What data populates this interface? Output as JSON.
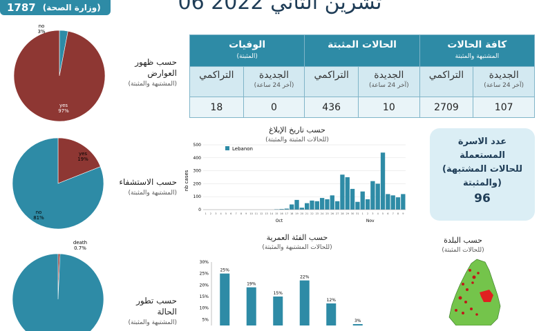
{
  "top_badge": {
    "number": "1787",
    "source": "(وزارة الصحة)"
  },
  "date": "06 تشرين الثاني 2022",
  "table": {
    "groups": [
      {
        "title": "الوفيات",
        "subtitle": "(المثبتة)"
      },
      {
        "title": "الحالات المثبتة",
        "subtitle": ""
      },
      {
        "title": "كافة الحالات",
        "subtitle": "المشتبهة والمثبتة"
      }
    ],
    "subheaders": [
      {
        "title": "التراكمي",
        "subtitle": ""
      },
      {
        "title": "الجديدة",
        "subtitle": "(آخر 24 ساعة)"
      },
      {
        "title": "التراكمي",
        "subtitle": ""
      },
      {
        "title": "الجديدة",
        "subtitle": "(آخر 24 ساعة)"
      },
      {
        "title": "التراكمي",
        "subtitle": ""
      },
      {
        "title": "الجديدة",
        "subtitle": "(آخر 24 ساعة)"
      }
    ],
    "values": [
      "18",
      "0",
      "436",
      "10",
      "2709",
      "107"
    ]
  },
  "labels": {
    "symptoms": {
      "title": "حسب ظهور العوارض",
      "sub": "(المشتبهة والمثبتة)"
    },
    "hospital": {
      "title": "حسب الاستشفاء",
      "sub": "(المشتبهة والمثبتة)"
    },
    "outcome": {
      "title": "حسب تطور الحالة",
      "sub": "(المشتبهة والمثبتة)"
    }
  },
  "families_box": {
    "text1": "عدد الاسرة",
    "text2": "المستعملة",
    "text3": "(للحالات المشتبهة",
    "text4": "والمثبتة)",
    "number": "96"
  },
  "report_chart_title": {
    "title": "حسب تاريخ الإبلاغ",
    "sub": "(للحالات المثبتة والمثبتة)"
  },
  "age_chart_title": {
    "title": "حسب الفئة العمرية",
    "sub": "(للحالات المشتبهة والمثبتة)"
  },
  "town_title": {
    "title": "حسب البلدة",
    "sub": "(للحالات المثبتة)"
  },
  "colors": {
    "yes": "#8e3733",
    "no": "#2e8ba6",
    "bar": "#2e8ba6"
  },
  "chart_data": [
    {
      "type": "pie",
      "slices": [
        {
          "label": "no",
          "pct": "3%",
          "value": 3
        },
        {
          "label": "yes",
          "pct": "97%",
          "value": 97
        }
      ]
    },
    {
      "type": "pie",
      "slices": [
        {
          "label": "yes",
          "pct": "19%",
          "value": 19
        },
        {
          "label": "no",
          "pct": "81%",
          "value": 81
        }
      ]
    },
    {
      "type": "pie",
      "slices": [
        {
          "label": "death",
          "pct": "0.7%",
          "value": 0.7
        },
        {
          "label": "",
          "pct": "",
          "value": 99.3
        }
      ]
    },
    {
      "type": "bar",
      "ylabel": "nb cases",
      "legend": "Lebanon",
      "yticks": [
        "0",
        "100",
        "200",
        "300",
        "400",
        "500"
      ],
      "ylim": [
        0,
        500
      ],
      "xlabels_month": [
        "Oct",
        "Nov"
      ],
      "values": [
        0,
        0,
        0,
        0,
        0,
        0,
        0,
        0,
        0,
        0,
        0,
        0,
        0,
        0,
        3,
        5,
        8,
        40,
        75,
        15,
        50,
        70,
        65,
        90,
        80,
        110,
        65,
        270,
        250,
        160,
        60,
        140,
        80,
        220,
        200,
        440,
        120,
        110,
        95,
        120
      ]
    },
    {
      "type": "bar",
      "yticks": [
        "0%",
        "5%",
        "10%",
        "15%",
        "20%",
        "25%",
        "30%"
      ],
      "ylim": [
        0,
        30
      ],
      "values": [
        25,
        19,
        15,
        22,
        12,
        3
      ],
      "labels": [
        "25%",
        "19%",
        "15%",
        "22%",
        "12%",
        "3%"
      ]
    }
  ]
}
